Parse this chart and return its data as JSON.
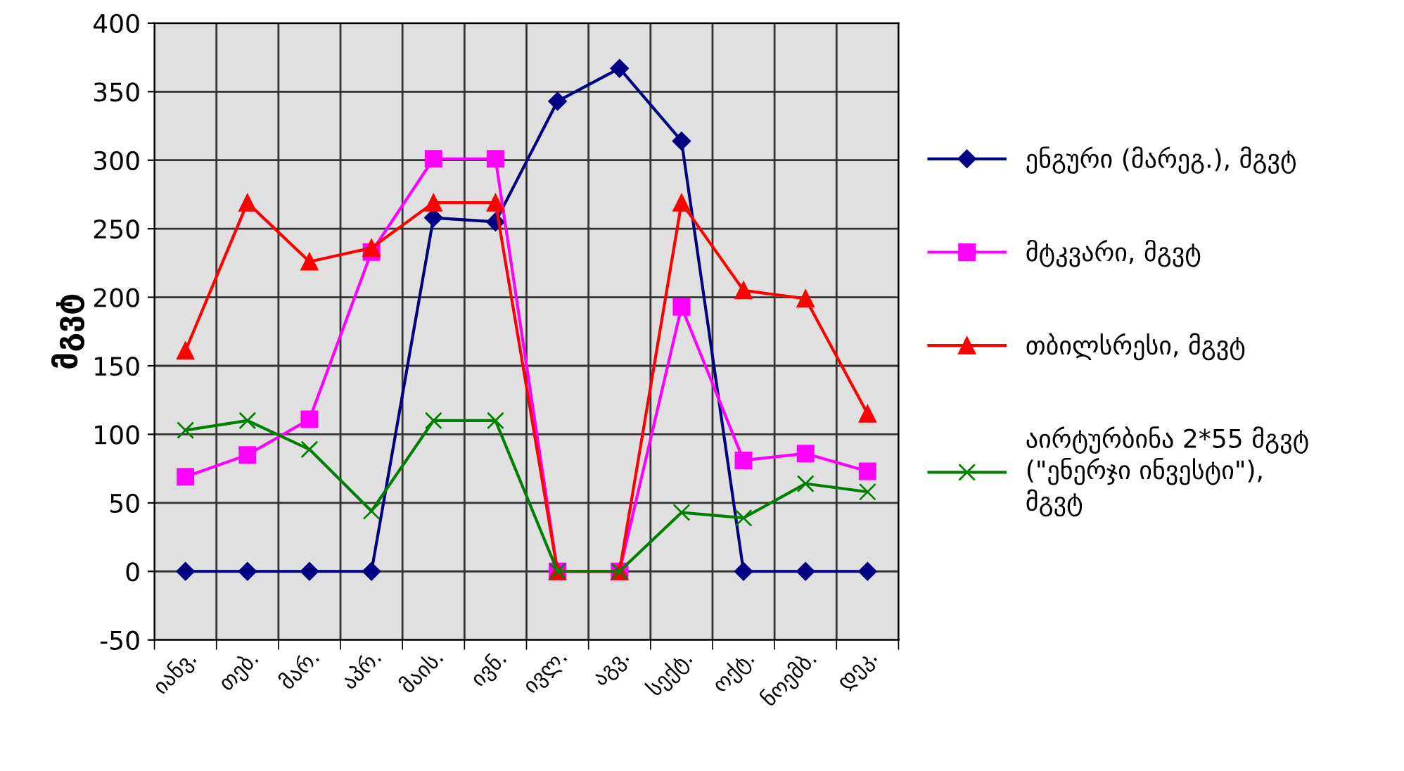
{
  "chart_data": {
    "type": "line",
    "ylabel": "მგვტ",
    "categories": [
      "იანვ.",
      "თებ.",
      "მარ.",
      "აპრ.",
      "მაის.",
      "ივნ.",
      "ივლ.",
      "აგვ.",
      "სექტ.",
      "ოქტ.",
      "ნოემბ.",
      "დეკ."
    ],
    "series": [
      {
        "name": "ენგური (მარეგ.), მგვტ",
        "color": "#000080",
        "marker": "diamond",
        "values": [
          0,
          0,
          0,
          0,
          258,
          255,
          343,
          367,
          314,
          0,
          0,
          0
        ]
      },
      {
        "name": "მტკვარი, მგვტ",
        "color": "#ff00ff",
        "marker": "square",
        "values": [
          69,
          85,
          111,
          233,
          301,
          301,
          0,
          0,
          193,
          81,
          86,
          73
        ]
      },
      {
        "name": "თბილსრესი, მგვტ",
        "color": "#ff0000",
        "marker": "triangle",
        "values": [
          161,
          269,
          226,
          236,
          269,
          269,
          0,
          0,
          269,
          205,
          199,
          115
        ]
      },
      {
        "name": "აირტურბინა 2*55 მგვტ (\"ენერჯი ინვესტი\"), მგვტ",
        "color": "#008000",
        "marker": "cross",
        "values": [
          103,
          110,
          89,
          44,
          110,
          110,
          0,
          0,
          43,
          39,
          64,
          58
        ]
      }
    ],
    "ylim": [
      -50,
      400
    ],
    "yticks": [
      -50,
      0,
      50,
      100,
      150,
      200,
      250,
      300,
      350,
      400
    ],
    "grid": true,
    "legend": "right",
    "line_style": "solid"
  }
}
